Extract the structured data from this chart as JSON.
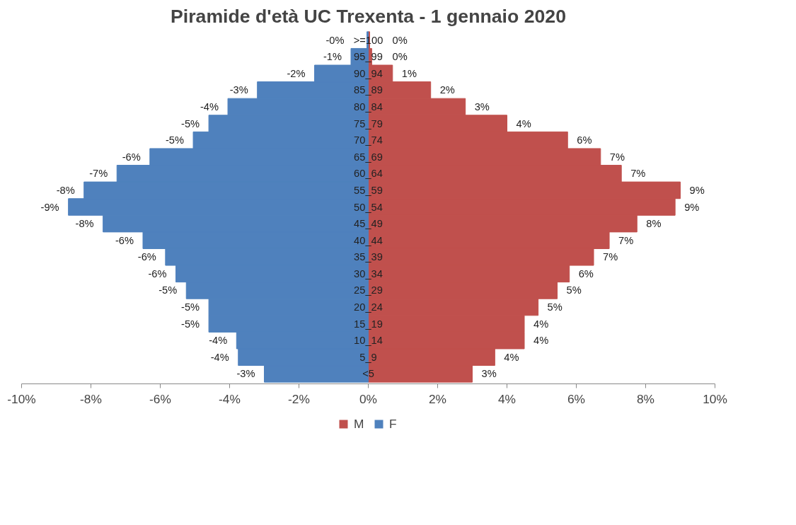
{
  "chart_data": {
    "type": "bar",
    "orientation": "horizontal",
    "title": "Piramide d'età UC Trexenta - 1 gennaio 2020",
    "categories": [
      ">=100",
      "95_99",
      "90_94",
      "85_89",
      "80_84",
      "75_79",
      "70_74",
      "65_69",
      "60_64",
      "55_59",
      "50_54",
      "45_49",
      "40_44",
      "35_39",
      "30_34",
      "25_29",
      "20_24",
      "15_19",
      "10_14",
      "5_9",
      "<5"
    ],
    "series": [
      {
        "name": "M",
        "color": "#c0504d",
        "values": [
          0.04,
          0.1,
          0.7,
          1.8,
          2.8,
          4.0,
          5.75,
          6.7,
          7.3,
          9.0,
          8.85,
          7.75,
          6.95,
          6.5,
          5.8,
          5.45,
          4.9,
          4.5,
          4.5,
          3.65,
          3.0
        ],
        "value_labels": [
          "0%",
          "0%",
          "1%",
          "2%",
          "3%",
          "4%",
          "6%",
          "7%",
          "7%",
          "9%",
          "9%",
          "8%",
          "7%",
          "7%",
          "6%",
          "5%",
          "5%",
          "4%",
          "4%",
          "4%",
          "3%"
        ]
      },
      {
        "name": "F",
        "color": "#4f81bd",
        "values": [
          -0.04,
          -0.5,
          -1.55,
          -3.2,
          -4.05,
          -4.6,
          -5.05,
          -6.3,
          -7.25,
          -8.2,
          -8.65,
          -7.65,
          -6.5,
          -5.85,
          -5.55,
          -5.25,
          -4.6,
          -4.6,
          -3.8,
          -3.75,
          -3.0
        ],
        "value_labels": [
          "-0%",
          "-1%",
          "-2%",
          "-3%",
          "-4%",
          "-5%",
          "-5%",
          "-6%",
          "-7%",
          "-8%",
          "-9%",
          "-8%",
          "-6%",
          "-6%",
          "-6%",
          "-5%",
          "-5%",
          "-5%",
          "-4%",
          "-4%",
          "-3%"
        ]
      }
    ],
    "xlim": [
      -10,
      10
    ],
    "xticks": [
      {
        "value": -10,
        "label": "-10%"
      },
      {
        "value": -8,
        "label": "-8%"
      },
      {
        "value": -6,
        "label": "-6%"
      },
      {
        "value": -4,
        "label": "-4%"
      },
      {
        "value": -2,
        "label": "-2%"
      },
      {
        "value": 0,
        "label": "0%"
      },
      {
        "value": 2,
        "label": "2%"
      },
      {
        "value": 4,
        "label": "4%"
      },
      {
        "value": 6,
        "label": "6%"
      },
      {
        "value": 8,
        "label": "8%"
      },
      {
        "value": 10,
        "label": "10%"
      }
    ],
    "legend": "bottom",
    "grid": false,
    "stacked": true
  }
}
